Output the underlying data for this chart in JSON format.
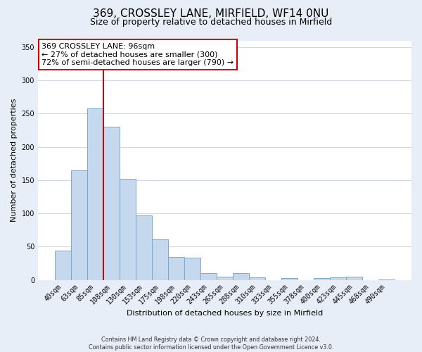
{
  "title": "369, CROSSLEY LANE, MIRFIELD, WF14 0NU",
  "subtitle": "Size of property relative to detached houses in Mirfield",
  "xlabel": "Distribution of detached houses by size in Mirfield",
  "ylabel": "Number of detached properties",
  "bar_labels": [
    "40sqm",
    "63sqm",
    "85sqm",
    "108sqm",
    "130sqm",
    "153sqm",
    "175sqm",
    "198sqm",
    "220sqm",
    "243sqm",
    "265sqm",
    "288sqm",
    "310sqm",
    "333sqm",
    "355sqm",
    "378sqm",
    "400sqm",
    "423sqm",
    "445sqm",
    "468sqm",
    "490sqm"
  ],
  "bar_values": [
    44,
    165,
    258,
    230,
    152,
    97,
    61,
    35,
    33,
    10,
    5,
    10,
    4,
    0,
    3,
    0,
    3,
    4,
    5,
    0,
    1
  ],
  "bar_color": "#c5d8ee",
  "bar_edge_color": "#7aA8cc",
  "bar_edge_width": 0.7,
  "vline_color": "#cc0000",
  "vline_linewidth": 1.5,
  "vline_position": 2.5,
  "ylim": [
    0,
    360
  ],
  "yticks": [
    0,
    50,
    100,
    150,
    200,
    250,
    300,
    350
  ],
  "annotation_text": "369 CROSSLEY LANE: 96sqm\n← 27% of detached houses are smaller (300)\n72% of semi-detached houses are larger (790) →",
  "annotation_box_color": "#ffffff",
  "annotation_box_edge_color": "#cc0000",
  "footer_line1": "Contains HM Land Registry data © Crown copyright and database right 2024.",
  "footer_line2": "Contains public sector information licensed under the Open Government Licence v3.0.",
  "background_color": "#e8eef8",
  "plot_bg_color": "#ffffff",
  "grid_color": "#d0d8e8",
  "title_fontsize": 11,
  "subtitle_fontsize": 9,
  "axis_label_fontsize": 8,
  "tick_fontsize": 7,
  "annotation_fontsize": 8
}
